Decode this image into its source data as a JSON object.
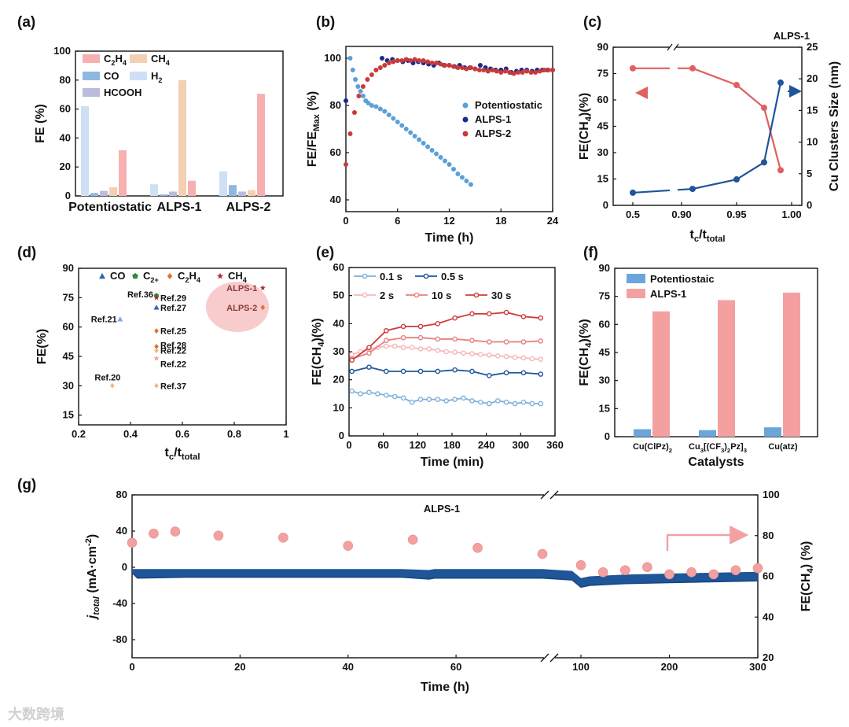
{
  "panels": {
    "a": {
      "label": "(a)"
    },
    "b": {
      "label": "(b)"
    },
    "c": {
      "label": "(c)"
    },
    "d": {
      "label": "(d)"
    },
    "e": {
      "label": "(e)"
    },
    "f": {
      "label": "(f)"
    },
    "g": {
      "label": "(g)"
    }
  },
  "watermark": "大数跨境",
  "chart_data": [
    {
      "id": "a",
      "type": "bar",
      "categories": [
        "Potentiostatic",
        "ALPS-1",
        "ALPS-2"
      ],
      "ylabel": "FE (%)",
      "ylim": [
        0,
        100
      ],
      "yticks": [
        0,
        20,
        40,
        60,
        80,
        100
      ],
      "series": [
        {
          "name": "H2",
          "color": "#cfe0f5",
          "values": [
            62,
            8,
            17
          ]
        },
        {
          "name": "CO",
          "color": "#8fb8e0",
          "values": [
            2,
            1,
            7.5
          ]
        },
        {
          "name": "HCOOH",
          "color": "#b9bcdc",
          "values": [
            3.5,
            3,
            3
          ]
        },
        {
          "name": "CH4",
          "color": "#f3cfb3",
          "values": [
            6,
            80,
            4
          ]
        },
        {
          "name": "C2H4",
          "color": "#f6b0b0",
          "values": [
            31.5,
            10.5,
            70.5
          ]
        }
      ],
      "legend": [
        {
          "main": "C",
          "sub": "2",
          "main2": "H",
          "sub2": "4",
          "color": "#f6b0b0"
        },
        {
          "main": "CH",
          "sub": "4",
          "main2": "",
          "sub2": "",
          "color": "#f3cfb3"
        },
        {
          "main": "CO",
          "sub": "",
          "main2": "",
          "sub2": "",
          "color": "#8fb8e0"
        },
        {
          "main": "H",
          "sub": "2",
          "main2": "",
          "sub2": "",
          "color": "#cfe0f5"
        },
        {
          "main": "HCOOH",
          "sub": "",
          "main2": "",
          "sub2": "",
          "color": "#b9bcdc"
        }
      ]
    },
    {
      "id": "b",
      "type": "scatter",
      "xlabel": "Time (h)",
      "ylabel_main": "FE/FE",
      "ylabel_sub": "Max",
      "ylabel_end": " (%)",
      "xlim": [
        0,
        24
      ],
      "ylim": [
        35,
        105
      ],
      "xticks": [
        0,
        6,
        12,
        18,
        24
      ],
      "yticks": [
        40,
        60,
        80,
        100
      ],
      "series": [
        {
          "name": "Potentiostatic",
          "color": "#5aa0d8",
          "x": [
            0.5,
            0.8,
            1.1,
            1.4,
            1.7,
            2.0,
            2.3,
            2.6,
            3.0,
            3.5,
            4.0,
            4.5,
            5.0,
            5.5,
            6.0,
            6.5,
            7.0,
            7.5,
            8.0,
            8.5,
            9.0,
            9.5,
            10.0,
            10.5,
            11.0,
            11.5,
            12.0,
            12.5,
            13.0,
            13.5,
            14.0,
            14.5
          ],
          "y": [
            100,
            95,
            91,
            88,
            86,
            84,
            82,
            81,
            80,
            79.5,
            78.5,
            77.5,
            76,
            74.5,
            73,
            71.5,
            70,
            68.5,
            67,
            65.5,
            64,
            62.5,
            61,
            59.5,
            58,
            56.5,
            55,
            53,
            51,
            49.5,
            48,
            46.5
          ]
        },
        {
          "name": "ALPS-1",
          "color": "#1a2a8c",
          "x": [
            0,
            4.2,
            4.8,
            5.4,
            6.0,
            6.6,
            7.2,
            7.8,
            8.4,
            9.0,
            9.6,
            10.2,
            10.8,
            11.4,
            12.0,
            12.6,
            13.2,
            13.8,
            14.4,
            15.0,
            15.6,
            16.2,
            16.8,
            17.4,
            18.0,
            18.6,
            19.2,
            19.8,
            20.4,
            21.0,
            21.6,
            22.2,
            22.8,
            23.4,
            24.0
          ],
          "y": [
            82,
            100,
            99,
            99.5,
            99,
            98.5,
            99,
            98,
            98.5,
            98,
            97.5,
            97,
            98,
            97,
            97,
            96.5,
            97,
            96,
            96,
            95.5,
            97,
            96,
            95.5,
            95,
            95,
            95.5,
            94,
            94.5,
            95,
            95,
            94.5,
            95,
            95,
            95,
            95
          ]
        },
        {
          "name": "ALPS-2",
          "color": "#c83a3a",
          "x": [
            0,
            0.5,
            1.0,
            1.5,
            2.0,
            2.5,
            3.0,
            3.5,
            4.0,
            4.5,
            5.0,
            5.5,
            6.0,
            6.5,
            7.0,
            7.5,
            8.0,
            8.5,
            9.0,
            9.5,
            10.0,
            10.5,
            11.0,
            11.5,
            12.0,
            12.5,
            13.0,
            13.5,
            14.0,
            14.5,
            15.0,
            15.5,
            16.0,
            16.5,
            17.0,
            17.5,
            18.0,
            18.5,
            19.0,
            19.5,
            20.0,
            20.5,
            21.0,
            21.5,
            22.0,
            22.5,
            23.0,
            23.5,
            24.0
          ],
          "y": [
            55,
            68,
            77,
            84,
            88,
            91,
            93,
            95,
            96,
            97,
            98,
            98.5,
            99,
            99,
            99.5,
            99,
            99.5,
            99,
            99,
            98.5,
            98,
            98,
            97.5,
            97,
            97,
            96.5,
            96,
            96,
            95.5,
            96,
            95.5,
            95,
            95,
            94.5,
            95,
            94.5,
            94,
            94.5,
            94,
            93.5,
            94,
            94,
            94.5,
            94,
            94,
            94.5,
            95,
            95,
            95
          ]
        }
      ]
    },
    {
      "id": "c",
      "type": "line",
      "title": "ALPS-1",
      "xlabel_main": "t",
      "xlabel_sub1": "c",
      "xlabel_mid": "/t",
      "xlabel_sub2": "total",
      "ylabel_main": "FE(CH",
      "ylabel_sub": "4",
      "ylabel_end": ")(%)",
      "y2label": "Cu Clusters Size (nm)",
      "xticks": [
        "0.5",
        "0.90",
        "0.95",
        "1.00"
      ],
      "ylim": [
        0,
        90
      ],
      "yticks": [
        0,
        15,
        30,
        45,
        60,
        75,
        90
      ],
      "y2lim": [
        0,
        25
      ],
      "y2ticks": [
        0,
        5,
        10,
        15,
        20,
        25
      ],
      "series": [
        {
          "name": "FE(CH4)",
          "color": "#e06060",
          "x": [
            0.5,
            0.91,
            0.95,
            0.975,
            0.99
          ],
          "y": [
            78,
            78,
            68.5,
            55.5,
            20
          ]
        },
        {
          "name": "Cu Clusters Size",
          "color": "#1f5599",
          "x": [
            0.5,
            0.91,
            0.95,
            0.975,
            0.99
          ],
          "y": [
            2,
            2.6,
            4.1,
            6.8,
            19.4
          ]
        }
      ]
    },
    {
      "id": "d",
      "type": "scatter",
      "xlabel_main": "t",
      "xlabel_sub1": "c",
      "xlabel_mid": "/t",
      "xlabel_sub2": "total",
      "ylabel": "FE(%)",
      "xlim": [
        0.2,
        1.0
      ],
      "ylim": [
        10,
        90
      ],
      "xticks": [
        0.2,
        0.4,
        0.6,
        0.8,
        1.0
      ],
      "yticks": [
        15,
        30,
        45,
        60,
        75,
        90
      ],
      "legend": [
        {
          "main": "CO",
          "sub": "",
          "main2": "",
          "sub2": "",
          "color": "#2a66b0",
          "shape": "triangle"
        },
        {
          "main": "C",
          "sub": "2+",
          "main2": "",
          "sub2": "",
          "color": "#2f8a3c",
          "shape": "pentagon"
        },
        {
          "main": "C",
          "sub": "2",
          "main2": "H",
          "sub2": "4",
          "color": "#e07030",
          "shape": "diamond"
        },
        {
          "main": "CH",
          "sub": "4",
          "main2": "",
          "sub2": "",
          "color": "#b02a2a",
          "shape": "star"
        }
      ],
      "highlight_labels": [
        "ALPS-1",
        "ALPS-2"
      ],
      "points": [
        {
          "x": 0.36,
          "y": 64,
          "type": "CO",
          "label": "Ref.21"
        },
        {
          "x": 0.33,
          "y": 30,
          "type": "C2H4",
          "label": "Ref.20"
        },
        {
          "x": 0.5,
          "y": 76,
          "type": "C2+",
          "label": "Ref.36"
        },
        {
          "x": 0.5,
          "y": 75,
          "type": "CH4",
          "label": "Ref.29"
        },
        {
          "x": 0.5,
          "y": 70,
          "type": "CO",
          "label": "Ref.27"
        },
        {
          "x": 0.5,
          "y": 58,
          "type": "C2H4",
          "label": "Ref.25"
        },
        {
          "x": 0.5,
          "y": 50,
          "type": "C2H4",
          "label": "Ref.28"
        },
        {
          "x": 0.5,
          "y": 48,
          "type": "C2H4",
          "label": "Ref.22"
        },
        {
          "x": 0.5,
          "y": 44,
          "type": "CH4",
          "label": "Ref.22"
        },
        {
          "x": 0.5,
          "y": 30,
          "type": "C2H4",
          "label": "Ref.37"
        },
        {
          "x": 0.91,
          "y": 80,
          "type": "CH4",
          "label": "ALPS-1"
        },
        {
          "x": 0.91,
          "y": 70,
          "type": "C2H4",
          "label": "ALPS-2"
        }
      ]
    },
    {
      "id": "e",
      "type": "line",
      "xlabel": "Time (min)",
      "ylabel_main": "FE(CH",
      "ylabel_sub": "4",
      "ylabel_end": ")(%)",
      "xlim": [
        0,
        360
      ],
      "ylim": [
        0,
        60
      ],
      "xticks": [
        0,
        60,
        120,
        180,
        240,
        300,
        360
      ],
      "yticks": [
        0,
        10,
        20,
        30,
        40,
        50,
        60
      ],
      "series": [
        {
          "name": "0.1 s",
          "color": "#7fb0dc",
          "marker": "open",
          "x": [
            5,
            20,
            35,
            50,
            65,
            80,
            95,
            110,
            125,
            140,
            155,
            170,
            185,
            200,
            215,
            230,
            245,
            260,
            275,
            290,
            305,
            320,
            335
          ],
          "y": [
            16,
            15,
            15.5,
            15,
            14.5,
            14,
            13.5,
            12,
            13,
            13,
            13,
            12.5,
            13,
            13.5,
            12.5,
            12,
            11.5,
            12.5,
            12,
            11.5,
            12,
            11.5,
            11.5
          ]
        },
        {
          "name": "0.5 s",
          "color": "#1f5599",
          "marker": "open",
          "x": [
            5,
            35,
            65,
            95,
            125,
            155,
            185,
            215,
            245,
            275,
            305,
            335
          ],
          "y": [
            23,
            24.5,
            23,
            23,
            23,
            23,
            23.5,
            23,
            21.5,
            22.5,
            22.5,
            22
          ]
        },
        {
          "name": "2 s",
          "color": "#f4b8b8",
          "marker": "open",
          "x": [
            5,
            20,
            35,
            50,
            65,
            80,
            95,
            110,
            125,
            140,
            155,
            170,
            185,
            200,
            215,
            230,
            245,
            260,
            275,
            290,
            305,
            320,
            335
          ],
          "y": [
            29,
            30,
            31,
            31.5,
            32,
            32,
            31.5,
            31.5,
            31,
            31,
            30.5,
            30,
            29.8,
            29.5,
            29.3,
            29,
            28.8,
            28.5,
            28.3,
            28,
            27.8,
            27.5,
            27.3
          ]
        },
        {
          "name": "10 s",
          "color": "#e88080",
          "marker": "open",
          "x": [
            5,
            35,
            65,
            95,
            125,
            155,
            185,
            215,
            245,
            275,
            305,
            335
          ],
          "y": [
            27.5,
            29.5,
            34,
            35,
            35,
            34.5,
            34.5,
            34,
            33.5,
            33.5,
            33.5,
            33.8
          ]
        },
        {
          "name": "30 s",
          "color": "#d03a3a",
          "marker": "open",
          "x": [
            5,
            35,
            65,
            95,
            125,
            155,
            185,
            215,
            245,
            275,
            305,
            335
          ],
          "y": [
            27,
            31.5,
            37.5,
            39,
            39,
            40,
            42,
            43.5,
            43.5,
            44,
            42.5,
            42
          ]
        }
      ]
    },
    {
      "id": "f",
      "type": "bar",
      "xlabel": "Catalysts",
      "ylabel_main": "FE(CH",
      "ylabel_sub": "4",
      "ylabel_end": ")(%)",
      "ylim": [
        0,
        90
      ],
      "yticks": [
        0,
        15,
        30,
        45,
        60,
        75,
        90
      ],
      "categories": [
        {
          "main": "Cu(ClPz)",
          "sub": "2",
          "main2": "",
          "sub2": ""
        },
        {
          "main": "Cu",
          "sub": "3",
          "main2": "[(CF",
          "sub2": "3"
        },
        {
          "main": "Cu(atz)",
          "sub": "",
          "main2": "",
          "sub2": ""
        }
      ],
      "category_tail": [
        "",
        ")2Pz]3",
        ""
      ],
      "series": [
        {
          "name": "Potentiostaic",
          "color": "#6aa6dc",
          "values": [
            4,
            3.5,
            5
          ]
        },
        {
          "name": "ALPS-1",
          "color": "#f4a0a0",
          "values": [
            67,
            73,
            77
          ]
        }
      ]
    },
    {
      "id": "g",
      "type": "line",
      "title": "ALPS-1",
      "xlabel": "Time (h)",
      "ylabel_main": "j",
      "ylabel_sub": "total",
      "ylabel_end": " (mA·cm",
      "ylabel_sup": "-2",
      "ylabel_close": ")",
      "y2label_main": "FE(CH",
      "y2label_sub": "4",
      "y2label_end": ") (%)",
      "xticks": [
        0,
        20,
        40,
        60,
        100,
        200,
        300
      ],
      "ylim": [
        -100,
        80
      ],
      "yticks": [
        -80,
        -40,
        0,
        40,
        80
      ],
      "y2lim": [
        20,
        100
      ],
      "y2ticks": [
        20,
        40,
        60,
        80,
        100
      ],
      "fe_series": {
        "name": "FE(CH4)",
        "color": "#f2a0a0",
        "x": [
          0,
          4,
          8,
          16,
          28,
          40,
          52,
          64,
          76,
          100,
          125,
          150,
          175,
          200,
          225,
          250,
          275,
          300
        ],
        "y": [
          76.5,
          81,
          82,
          80,
          79,
          75,
          78,
          74,
          71,
          65.5,
          62,
          63,
          64.5,
          61,
          62,
          61,
          63,
          64
        ]
      },
      "current_series": {
        "name": "j_total",
        "color": "#1f5599",
        "x": [
          0,
          1,
          10,
          30,
          50,
          55,
          56,
          60,
          76,
          90,
          100,
          110,
          150,
          200,
          250,
          300
        ],
        "y": [
          -6,
          -12,
          -11,
          -11,
          -11,
          -13,
          -12,
          -12,
          -12,
          -14,
          -22,
          -20,
          -18,
          -17,
          -16,
          -15
        ]
      }
    }
  ]
}
